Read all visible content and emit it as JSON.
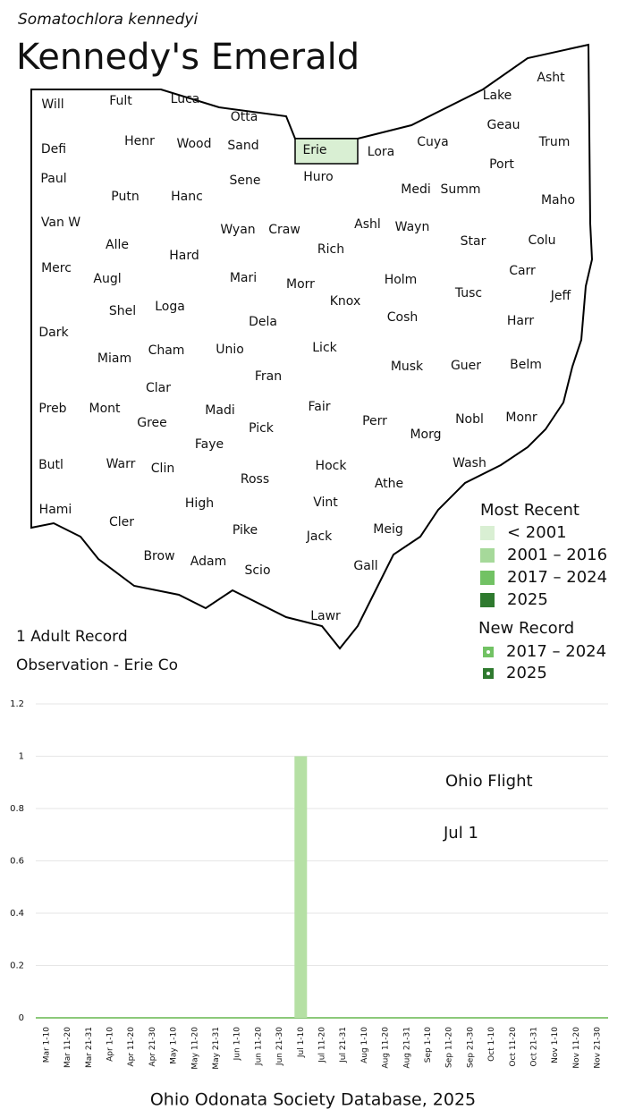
{
  "header": {
    "species": "Somatochlora kennedyi",
    "title": "Kennedy's Emerald"
  },
  "map": {
    "counties": [
      "Will",
      "Fult",
      "Luca",
      "Otta",
      "Lake",
      "Asht",
      "Defi",
      "Henr",
      "Wood",
      "Sand",
      "Erie",
      "Lora",
      "Cuya",
      "Geau",
      "Trum",
      "Paul",
      "Putn",
      "Hanc",
      "Sene",
      "Huro",
      "Medi",
      "Summ",
      "Port",
      "Maho",
      "Van W",
      "Alle",
      "Hard",
      "Wyan",
      "Craw",
      "Rich",
      "Ashl",
      "Wayn",
      "Star",
      "Colu",
      "Merc",
      "Augl",
      "Mari",
      "Morr",
      "Knox",
      "Holm",
      "Tusc",
      "Carr",
      "Jeff",
      "Shel",
      "Loga",
      "Dela",
      "Cosh",
      "Harr",
      "Dark",
      "Cham",
      "Unio",
      "Lick",
      "Miam",
      "Fran",
      "Musk",
      "Guer",
      "Belm",
      "Clar",
      "Madi",
      "Fair",
      "Perr",
      "Nobl",
      "Monr",
      "Preb",
      "Mont",
      "Gree",
      "Faye",
      "Pick",
      "Morg",
      "Butl",
      "Warr",
      "Clin",
      "Hock",
      "Wash",
      "Ross",
      "Athe",
      "Hami",
      "Cler",
      "High",
      "Vint",
      "Meig",
      "Pike",
      "Jack",
      "Brow",
      "Adam",
      "Scio",
      "Gall",
      "Lawr"
    ],
    "highlight_color": "#d9efd3"
  },
  "legend": {
    "most_recent": {
      "title": "Most Recent",
      "items": [
        {
          "label": "< 2001",
          "color": "#d9efd3"
        },
        {
          "label": "2001 – 2016",
          "color": "#a6d99a"
        },
        {
          "label": "2017 – 2024",
          "color": "#72c264"
        },
        {
          "label": "2025",
          "color": "#2f7a2f"
        }
      ]
    },
    "new_record": {
      "title": "New Record",
      "items": [
        {
          "label": "2017 – 2024",
          "color": "#72c264"
        },
        {
          "label": "2025",
          "color": "#2f7a2f"
        }
      ]
    }
  },
  "notes": [
    "1 Adult Record",
    "Observation - Erie Co"
  ],
  "chart_data": {
    "type": "bar",
    "categories": [
      "Mar 1-10",
      "Mar 11-20",
      "Mar 21-31",
      "Apr 1-10",
      "Apr 11-20",
      "Apr 21-30",
      "May 1-10",
      "May 11-20",
      "May 21-31",
      "Jun 1-10",
      "Jun 11-20",
      "Jun 21-30",
      "Jul 1-10",
      "Jul 11-20",
      "Jul 21-31",
      "Aug 1-10",
      "Aug 11-20",
      "Aug 21-31",
      "Sep 1-10",
      "Sep 11-20",
      "Sep 21-30",
      "Oct 1-10",
      "Oct 11-20",
      "Oct 21-31",
      "Nov 1-10",
      "Nov 11-20",
      "Nov 21-30"
    ],
    "values": [
      0,
      0,
      0,
      0,
      0,
      0,
      0,
      0,
      0,
      0,
      0,
      0,
      1,
      0,
      0,
      0,
      0,
      0,
      0,
      0,
      0,
      0,
      0,
      0,
      0,
      0,
      0
    ],
    "color": "#b5e0a4",
    "ylim": [
      0,
      1.2
    ],
    "yticks": [
      0,
      0.2,
      0.4,
      0.6,
      0.8,
      1,
      1.2
    ],
    "grid": true,
    "annotations": [
      "Ohio Flight",
      "Jul 1"
    ]
  },
  "footer": "Ohio Odonata Society Database, 2025"
}
